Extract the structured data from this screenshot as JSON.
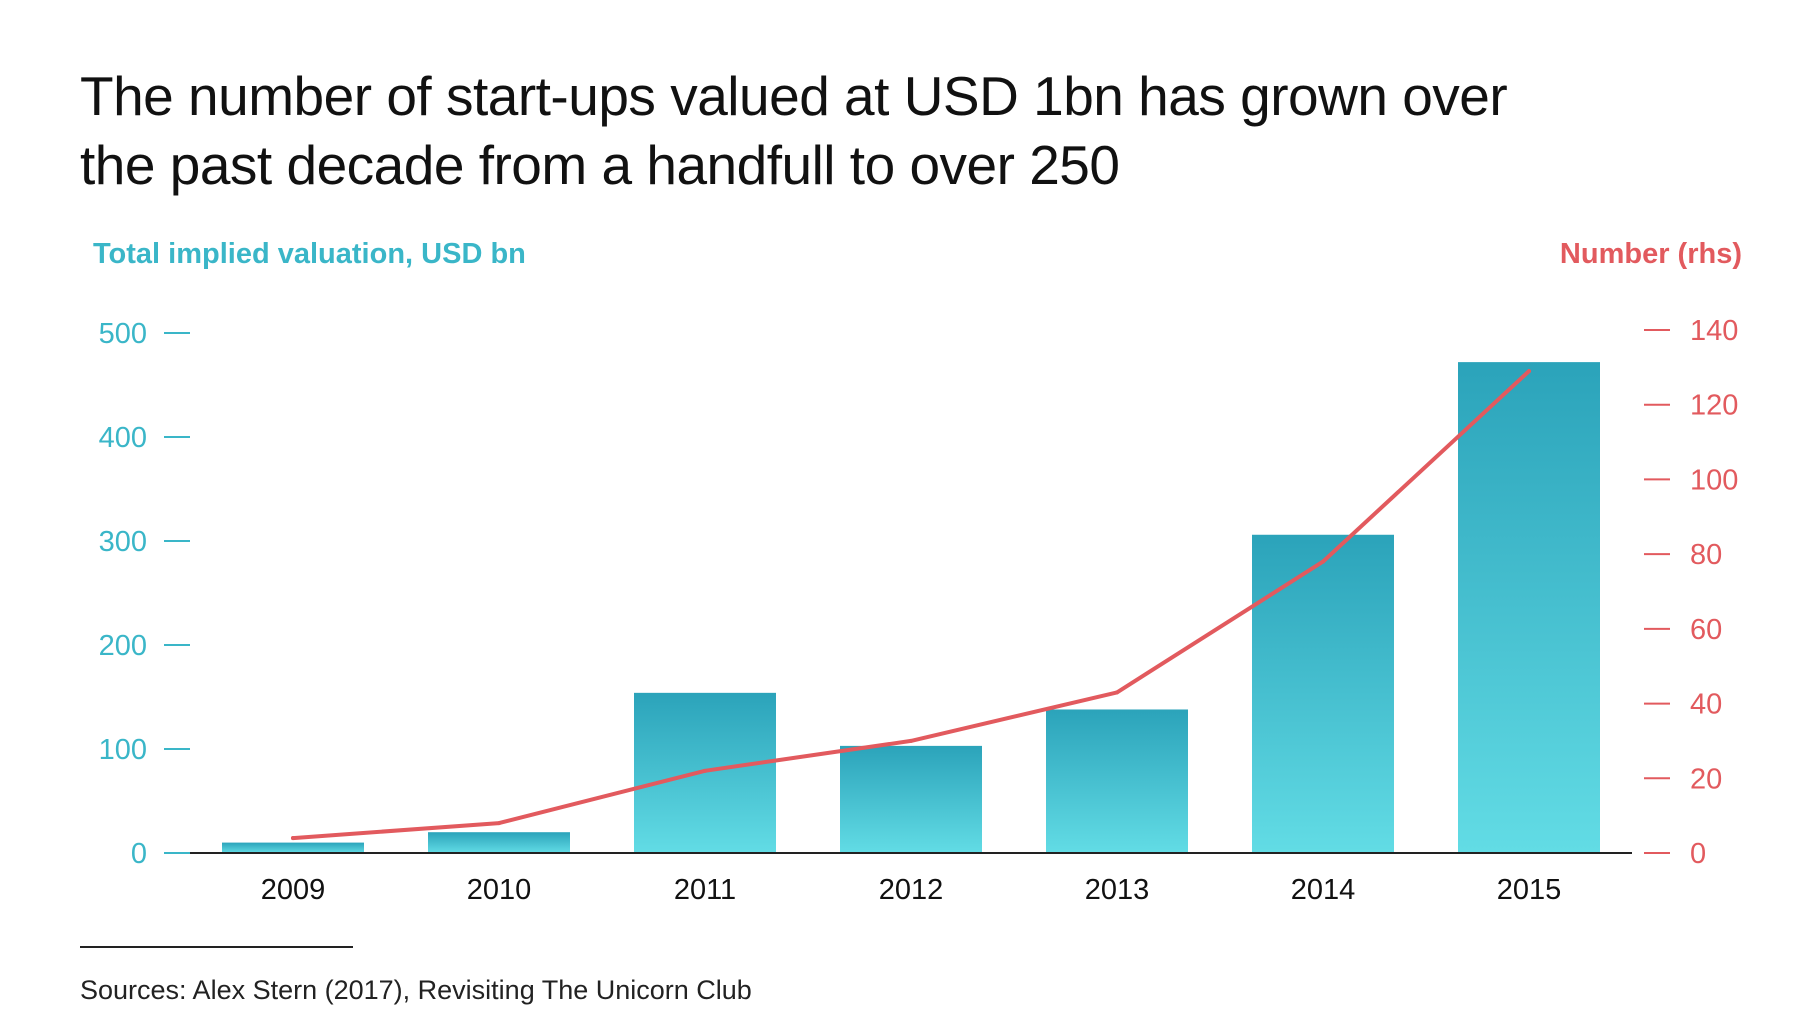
{
  "title_lines": [
    "The number of start-ups valued at USD 1bn has grown over",
    "the past decade from a handfull to over 250"
  ],
  "source": "Sources: Alex Stern (2017), Revisiting The Unicorn Club",
  "colors": {
    "bar_top": "#2ba3ba",
    "bar_bottom": "#62dce5",
    "left_axis": "#3ab6c8",
    "line": "#e25a5e",
    "baseline": "#222222",
    "text": "#111111"
  },
  "chart_data": {
    "type": "bar",
    "title": "",
    "categories": [
      "2009",
      "2010",
      "2011",
      "2012",
      "2013",
      "2014",
      "2015"
    ],
    "series": [
      {
        "name": "Total implied valuation, USD bn",
        "type": "bar",
        "axis": "left",
        "values": [
          10,
          20,
          154,
          103,
          138,
          306,
          472
        ]
      },
      {
        "name": "Number (rhs)",
        "type": "line",
        "axis": "right",
        "values": [
          4,
          8,
          22,
          30,
          43,
          78,
          129
        ]
      }
    ],
    "left_axis": {
      "label": "Total implied valuation, USD bn",
      "ylim": [
        0,
        500
      ],
      "ticks": [
        0,
        100,
        200,
        300,
        400,
        500
      ]
    },
    "right_axis": {
      "label": "Number (rhs)",
      "ylim": [
        0,
        140
      ],
      "ticks": [
        0,
        20,
        40,
        60,
        80,
        100,
        120,
        140
      ]
    },
    "grid": false,
    "legend": "none"
  }
}
